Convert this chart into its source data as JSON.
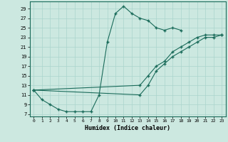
{
  "title": "",
  "xlabel": "Humidex (Indice chaleur)",
  "bg_color": "#cce8e0",
  "line_color": "#1a6b5a",
  "grid_color": "#aad4cc",
  "xlim": [
    -0.5,
    23.5
  ],
  "ylim": [
    6.5,
    30.5
  ],
  "yticks": [
    7,
    9,
    11,
    13,
    15,
    17,
    19,
    21,
    23,
    25,
    27,
    29
  ],
  "xticks": [
    0,
    1,
    2,
    3,
    4,
    5,
    6,
    7,
    8,
    9,
    10,
    11,
    12,
    13,
    14,
    15,
    16,
    17,
    18,
    19,
    20,
    21,
    22,
    23
  ],
  "series": [
    {
      "x": [
        0,
        1,
        2,
        3,
        4,
        5,
        6,
        7,
        8,
        9,
        10,
        11,
        12,
        13,
        14,
        15,
        16,
        17,
        18
      ],
      "y": [
        12,
        10,
        9,
        8,
        7.5,
        7.5,
        7.5,
        7.5,
        11,
        22,
        28,
        29.5,
        28,
        27,
        26.5,
        25,
        24.5,
        25,
        24.5
      ]
    },
    {
      "x": [
        0,
        13,
        14,
        15,
        16,
        17,
        18,
        19,
        20,
        21,
        22,
        23
      ],
      "y": [
        12,
        13,
        15,
        17,
        18,
        20,
        21,
        22,
        23,
        23.5,
        23.5,
        23.5
      ]
    },
    {
      "x": [
        0,
        13,
        14,
        15,
        16,
        17,
        18,
        19,
        20,
        21,
        22,
        23
      ],
      "y": [
        12,
        11,
        13,
        16,
        17.5,
        19,
        20,
        21,
        22,
        23,
        23,
        23.5
      ]
    }
  ]
}
